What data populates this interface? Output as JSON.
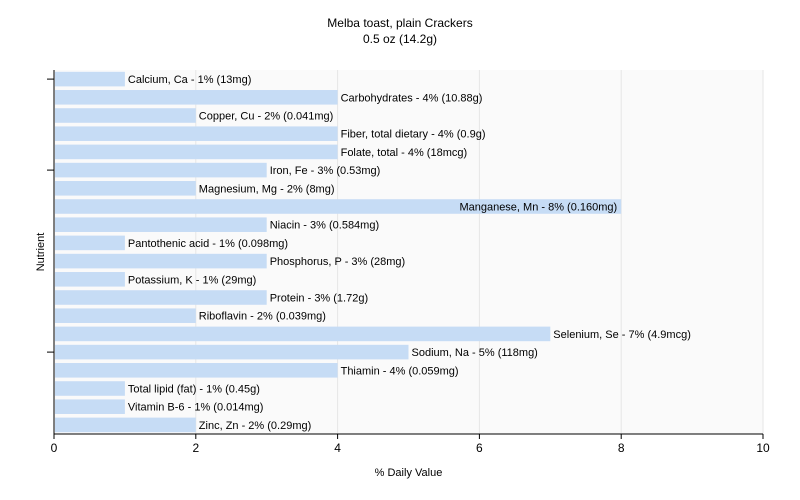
{
  "chart_data": {
    "type": "bar",
    "orientation": "horizontal",
    "title": "Melba toast, plain Crackers",
    "subtitle": "0.5 oz (14.2g)",
    "xlabel": "% Daily Value",
    "ylabel": "Nutrient",
    "xlim": [
      0,
      10
    ],
    "xticks": [
      0,
      2,
      4,
      6,
      8,
      10
    ],
    "grid": true,
    "bar_color": "#c6dcf5",
    "categories": [
      "Calcium, Ca",
      "Carbohydrates",
      "Copper, Cu",
      "Fiber, total dietary",
      "Folate, total",
      "Iron, Fe",
      "Magnesium, Mg",
      "Manganese, Mn",
      "Niacin",
      "Pantothenic acid",
      "Phosphorus, P",
      "Potassium, K",
      "Protein",
      "Riboflavin",
      "Selenium, Se",
      "Sodium, Na",
      "Thiamin",
      "Total lipid (fat)",
      "Vitamin B-6",
      "Zinc, Zn"
    ],
    "values": [
      1,
      4,
      2,
      4,
      4,
      3,
      2,
      8,
      3,
      1,
      3,
      1,
      3,
      2,
      7,
      5,
      4,
      1,
      1,
      2
    ],
    "labels": [
      "Calcium, Ca - 1% (13mg)",
      "Carbohydrates - 4% (10.88g)",
      "Copper, Cu - 2% (0.041mg)",
      "Fiber, total dietary - 4% (0.9g)",
      "Folate, total - 4% (18mcg)",
      "Iron, Fe - 3% (0.53mg)",
      "Magnesium, Mg - 2% (8mg)",
      "Manganese, Mn - 8% (0.160mg)",
      "Niacin - 3% (0.584mg)",
      "Pantothenic acid - 1% (0.098mg)",
      "Phosphorus, P - 3% (28mg)",
      "Potassium, K - 1% (29mg)",
      "Protein - 3% (1.72g)",
      "Riboflavin - 2% (0.039mg)",
      "Selenium, Se - 7% (4.9mcg)",
      "Sodium, Na - 5% (118mg)",
      "Thiamin - 4% (0.059mg)",
      "Total lipid (fat) - 1% (0.45g)",
      "Vitamin B-6 - 1% (0.014mg)",
      "Zinc, Zn - 2% (0.29mg)"
    ]
  }
}
